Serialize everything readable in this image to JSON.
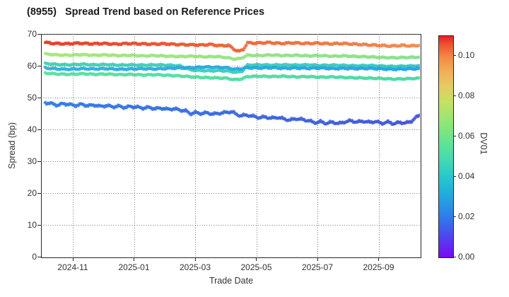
{
  "title": "(8955)   Spread Trend based on Reference Prices",
  "chart_data": {
    "type": "scatter",
    "title": "(8955)   Spread Trend based on Reference Prices",
    "xlabel": "Trade Date",
    "ylabel": "Spread (bp)",
    "ylim": [
      0,
      70
    ],
    "yticks": [
      "0",
      "10",
      "20",
      "30",
      "40",
      "50",
      "60",
      "70"
    ],
    "grid": true,
    "x_unit": "months_since_2024-10-01",
    "x_range": [
      0.1,
      12.35
    ],
    "xticks": {
      "positions": [
        1,
        3,
        5,
        7,
        9,
        11
      ],
      "labels": [
        "2024-11",
        "2025-01",
        "2025-03",
        "2025-05",
        "2025-07",
        "2025-09"
      ]
    },
    "colorbar": {
      "label": "DV01",
      "tick_labels": [
        "0.00",
        "0.02",
        "0.04",
        "0.06",
        "0.08",
        "0.10"
      ],
      "tick_values": [
        0.0,
        0.02,
        0.04,
        0.06,
        0.08,
        0.1
      ],
      "vmin": 0.0,
      "vmax": 0.11
    },
    "series": [
      {
        "name": "s1-red-orange-~67bp",
        "dv01_start": 0.105,
        "dv01_end": 0.092,
        "color_start": "#e63a22",
        "color_end": "#f28c4a",
        "jitter": 0.28,
        "points": [
          [
            0.1,
            67.3
          ],
          [
            0.4,
            67.0
          ],
          [
            0.8,
            66.9
          ],
          [
            1.2,
            67.1
          ],
          [
            1.6,
            66.9
          ],
          [
            2.0,
            67.0
          ],
          [
            2.4,
            66.8
          ],
          [
            2.8,
            67.0
          ],
          [
            3.2,
            66.9
          ],
          [
            3.6,
            66.8
          ],
          [
            4.0,
            66.9
          ],
          [
            4.4,
            66.7
          ],
          [
            4.8,
            66.6
          ],
          [
            5.2,
            66.5
          ],
          [
            5.5,
            66.7
          ],
          [
            5.8,
            66.3
          ],
          [
            6.1,
            66.4
          ],
          [
            6.3,
            65.0
          ],
          [
            6.45,
            64.5
          ],
          [
            6.6,
            65.3
          ],
          [
            6.7,
            67.2
          ],
          [
            7.0,
            67.1
          ],
          [
            7.4,
            67.3
          ],
          [
            7.8,
            67.0
          ],
          [
            8.2,
            67.2
          ],
          [
            8.6,
            67.0
          ],
          [
            9.0,
            67.1
          ],
          [
            9.4,
            66.9
          ],
          [
            9.8,
            67.0
          ],
          [
            10.2,
            66.8
          ],
          [
            10.6,
            66.6
          ],
          [
            11.0,
            66.4
          ],
          [
            11.4,
            66.2
          ],
          [
            11.8,
            66.4
          ],
          [
            12.1,
            66.2
          ],
          [
            12.35,
            66.5
          ]
        ]
      },
      {
        "name": "s2-yellowgreen-~63bp",
        "dv01_start": 0.07,
        "dv01_end": 0.066,
        "color_start": "#a8e67c",
        "color_end": "#88e18e",
        "jitter": 0.2,
        "points": [
          [
            0.1,
            63.7
          ],
          [
            0.5,
            63.4
          ],
          [
            0.9,
            63.3
          ],
          [
            1.3,
            63.5
          ],
          [
            1.7,
            63.3
          ],
          [
            2.1,
            63.4
          ],
          [
            2.5,
            63.2
          ],
          [
            2.9,
            63.3
          ],
          [
            3.3,
            63.1
          ],
          [
            3.7,
            63.2
          ],
          [
            4.1,
            63.0
          ],
          [
            4.5,
            62.9
          ],
          [
            4.9,
            63.0
          ],
          [
            5.3,
            62.8
          ],
          [
            5.7,
            62.9
          ],
          [
            6.0,
            62.6
          ],
          [
            6.3,
            62.1
          ],
          [
            6.5,
            62.3
          ],
          [
            6.7,
            63.3
          ],
          [
            7.1,
            63.2
          ],
          [
            7.5,
            63.4
          ],
          [
            7.9,
            63.2
          ],
          [
            8.3,
            63.3
          ],
          [
            8.7,
            63.1
          ],
          [
            9.1,
            63.2
          ],
          [
            9.5,
            63.0
          ],
          [
            9.9,
            63.1
          ],
          [
            10.3,
            62.9
          ],
          [
            10.7,
            62.8
          ],
          [
            11.1,
            62.6
          ],
          [
            11.5,
            62.5
          ],
          [
            11.9,
            62.6
          ],
          [
            12.35,
            62.7
          ]
        ]
      },
      {
        "name": "s3-teal-~60bp",
        "dv01_start": 0.054,
        "dv01_end": 0.051,
        "color_start": "#40d4b2",
        "color_end": "#36cbc6",
        "jitter": 0.2,
        "points": [
          [
            0.1,
            60.7
          ],
          [
            0.5,
            60.4
          ],
          [
            0.9,
            60.3
          ],
          [
            1.3,
            60.5
          ],
          [
            1.7,
            60.3
          ],
          [
            2.1,
            60.4
          ],
          [
            2.5,
            60.2
          ],
          [
            2.9,
            60.3
          ],
          [
            3.3,
            60.2
          ],
          [
            3.7,
            60.3
          ],
          [
            4.1,
            60.2
          ],
          [
            4.5,
            60.0
          ],
          [
            4.7,
            59.2
          ],
          [
            4.9,
            58.6
          ],
          [
            5.2,
            58.5
          ],
          [
            5.5,
            58.4
          ],
          [
            5.8,
            58.5
          ],
          [
            6.1,
            58.3
          ],
          [
            6.35,
            57.9
          ],
          [
            6.55,
            58.3
          ],
          [
            6.7,
            60.2
          ],
          [
            7.1,
            60.3
          ],
          [
            7.5,
            60.2
          ],
          [
            7.9,
            60.3
          ],
          [
            8.3,
            60.2
          ],
          [
            8.7,
            60.3
          ],
          [
            9.1,
            60.1
          ],
          [
            9.5,
            60.2
          ],
          [
            9.9,
            60.1
          ],
          [
            10.3,
            60.0
          ],
          [
            10.7,
            60.1
          ],
          [
            11.1,
            59.9
          ],
          [
            11.5,
            59.8
          ],
          [
            11.9,
            59.9
          ],
          [
            12.35,
            60.0
          ]
        ]
      },
      {
        "name": "s4-cyan-~59bp",
        "dv01_start": 0.04,
        "dv01_end": 0.037,
        "color_start": "#2bb1e3",
        "color_end": "#22a3e6",
        "jitter": 0.24,
        "points": [
          [
            0.1,
            59.3
          ],
          [
            0.5,
            59.0
          ],
          [
            0.9,
            58.9
          ],
          [
            1.3,
            59.1
          ],
          [
            1.7,
            59.0
          ],
          [
            2.1,
            59.1
          ],
          [
            2.5,
            58.9
          ],
          [
            2.9,
            59.0
          ],
          [
            3.3,
            59.1
          ],
          [
            3.7,
            59.0
          ],
          [
            4.1,
            59.2
          ],
          [
            4.5,
            59.3
          ],
          [
            4.9,
            59.4
          ],
          [
            5.3,
            59.6
          ],
          [
            5.7,
            59.5
          ],
          [
            6.0,
            59.4
          ],
          [
            6.3,
            58.9
          ],
          [
            6.55,
            59.1
          ],
          [
            6.7,
            59.4
          ],
          [
            7.1,
            59.3
          ],
          [
            7.5,
            59.4
          ],
          [
            7.9,
            59.2
          ],
          [
            8.3,
            59.3
          ],
          [
            8.7,
            59.2
          ],
          [
            9.1,
            59.3
          ],
          [
            9.5,
            59.1
          ],
          [
            9.9,
            59.2
          ],
          [
            10.3,
            59.1
          ],
          [
            10.7,
            59.2
          ],
          [
            11.1,
            59.0
          ],
          [
            11.5,
            58.9
          ],
          [
            11.9,
            59.0
          ],
          [
            12.35,
            59.1
          ]
        ]
      },
      {
        "name": "s5-springgreen-~57bp",
        "dv01_start": 0.058,
        "dv01_end": 0.055,
        "color_start": "#58e1a2",
        "color_end": "#49daa5",
        "jitter": 0.2,
        "points": [
          [
            0.1,
            57.7
          ],
          [
            0.5,
            57.4
          ],
          [
            0.9,
            57.3
          ],
          [
            1.3,
            57.5
          ],
          [
            1.7,
            57.3
          ],
          [
            2.1,
            57.4
          ],
          [
            2.5,
            57.2
          ],
          [
            2.9,
            57.3
          ],
          [
            3.3,
            57.1
          ],
          [
            3.7,
            57.2
          ],
          [
            4.1,
            57.0
          ],
          [
            4.5,
            56.8
          ],
          [
            4.9,
            56.5
          ],
          [
            5.3,
            56.3
          ],
          [
            5.7,
            56.2
          ],
          [
            6.0,
            56.1
          ],
          [
            6.3,
            55.6
          ],
          [
            6.55,
            55.9
          ],
          [
            6.7,
            56.6
          ],
          [
            7.1,
            56.7
          ],
          [
            7.5,
            56.6
          ],
          [
            7.9,
            56.7
          ],
          [
            8.3,
            56.5
          ],
          [
            8.7,
            56.6
          ],
          [
            9.1,
            56.4
          ],
          [
            9.5,
            56.5
          ],
          [
            9.9,
            56.3
          ],
          [
            10.3,
            56.2
          ],
          [
            10.7,
            56.1
          ],
          [
            11.1,
            56.0
          ],
          [
            11.5,
            55.8
          ],
          [
            11.9,
            55.9
          ],
          [
            12.35,
            56.1
          ]
        ]
      },
      {
        "name": "s6-blue-48-to-42bp",
        "dv01_start": 0.024,
        "dv01_end": 0.013,
        "color_start": "#2e7ce9",
        "color_end": "#4152d6",
        "jitter": 0.4,
        "points": [
          [
            0.1,
            48.4
          ],
          [
            0.3,
            48.1
          ],
          [
            0.5,
            47.6
          ],
          [
            0.7,
            48.1
          ],
          [
            0.9,
            47.8
          ],
          [
            1.1,
            47.5
          ],
          [
            1.3,
            47.9
          ],
          [
            1.5,
            47.4
          ],
          [
            1.7,
            47.7
          ],
          [
            1.9,
            47.2
          ],
          [
            2.1,
            47.5
          ],
          [
            2.3,
            47.1
          ],
          [
            2.5,
            47.3
          ],
          [
            2.7,
            46.9
          ],
          [
            2.9,
            47.2
          ],
          [
            3.1,
            47.0
          ],
          [
            3.3,
            46.7
          ],
          [
            3.5,
            46.9
          ],
          [
            3.7,
            46.5
          ],
          [
            3.9,
            46.7
          ],
          [
            4.1,
            46.3
          ],
          [
            4.3,
            46.5
          ],
          [
            4.5,
            46.1
          ],
          [
            4.7,
            45.8
          ],
          [
            4.85,
            44.9
          ],
          [
            5.0,
            45.3
          ],
          [
            5.2,
            45.0
          ],
          [
            5.4,
            45.2
          ],
          [
            5.6,
            44.8
          ],
          [
            5.8,
            45.1
          ],
          [
            6.0,
            45.3
          ],
          [
            6.2,
            45.6
          ],
          [
            6.35,
            44.7
          ],
          [
            6.5,
            44.3
          ],
          [
            6.7,
            44.5
          ],
          [
            6.9,
            44.1
          ],
          [
            7.1,
            43.7
          ],
          [
            7.3,
            43.9
          ],
          [
            7.5,
            43.5
          ],
          [
            7.7,
            43.8
          ],
          [
            7.9,
            43.3
          ],
          [
            8.1,
            42.9
          ],
          [
            8.3,
            43.4
          ],
          [
            8.5,
            43.1
          ],
          [
            8.7,
            42.8
          ],
          [
            8.9,
            42.1
          ],
          [
            9.1,
            42.4
          ],
          [
            9.3,
            41.9
          ],
          [
            9.5,
            42.3
          ],
          [
            9.7,
            41.8
          ],
          [
            9.9,
            42.4
          ],
          [
            10.1,
            42.7
          ],
          [
            10.3,
            42.3
          ],
          [
            10.5,
            42.6
          ],
          [
            10.7,
            42.2
          ],
          [
            10.9,
            42.5
          ],
          [
            11.1,
            41.9
          ],
          [
            11.3,
            42.3
          ],
          [
            11.5,
            41.8
          ],
          [
            11.7,
            42.2
          ],
          [
            11.9,
            42.0
          ],
          [
            12.05,
            42.4
          ],
          [
            12.2,
            43.6
          ],
          [
            12.35,
            44.4
          ]
        ]
      }
    ],
    "render": {
      "marker_radius": 2.4,
      "marker_alpha": 0.85,
      "step_months": 0.045
    }
  },
  "colors": {
    "frame": "#262626",
    "grid": "#646464",
    "text": "#333333",
    "title": "#1a1a1a"
  }
}
